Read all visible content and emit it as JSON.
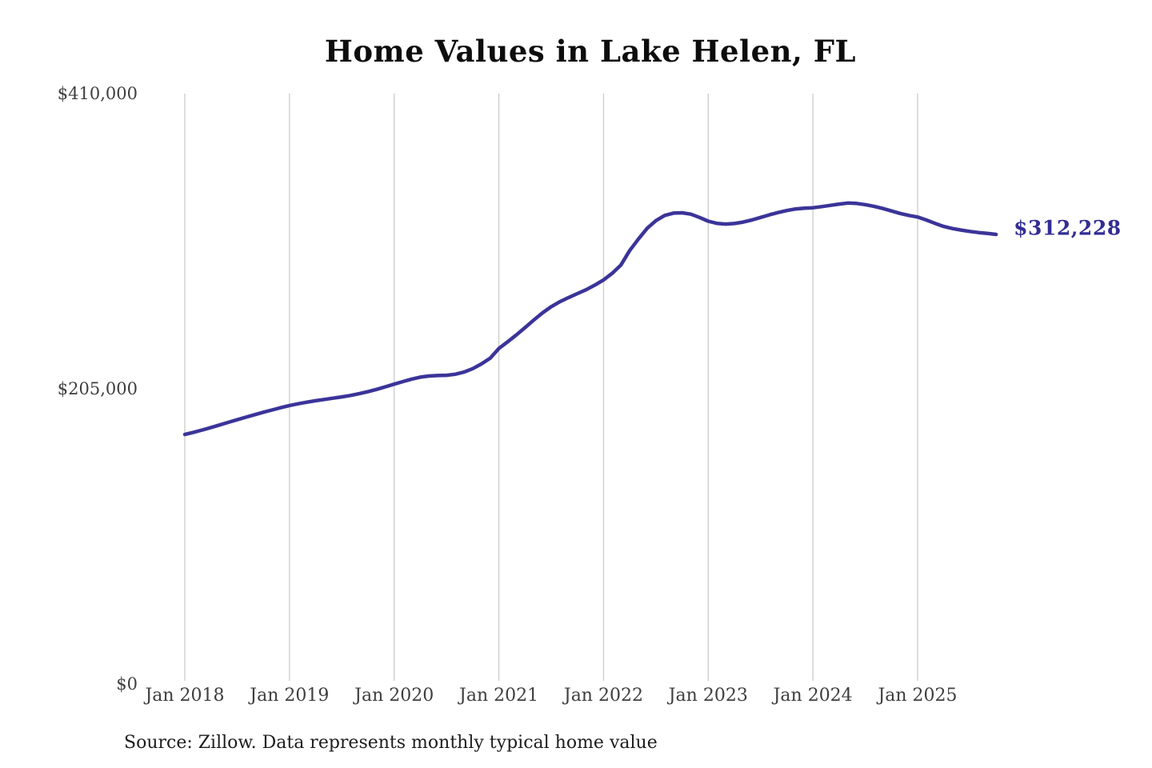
{
  "title": "Home Values in Lake Helen, FL",
  "source_note": "Source: Zillow. Data represents monthly typical home value",
  "end_label": "$312,228",
  "colors": {
    "line": "#3b3499",
    "value_label": "#332d94",
    "grid": "#cbcbcb",
    "axis_text": "#3e3e3e",
    "title_text": "#0d0d0d",
    "background": "#ffffff"
  },
  "chart_data": {
    "type": "line",
    "title": "Home Values in Lake Helen, FL",
    "xlabel": "",
    "ylabel": "",
    "ylim": [
      0,
      410000
    ],
    "y_ticks": [
      "$410,000",
      "$205,000",
      "$0"
    ],
    "y_tick_values": [
      410000,
      205000,
      0
    ],
    "x_ticks": [
      "Jan 2018",
      "Jan 2019",
      "Jan 2020",
      "Jan 2021",
      "Jan 2022",
      "Jan 2023",
      "Jan 2024",
      "Jan 2025"
    ],
    "x_start": "2018-01",
    "x_end": "2025-10",
    "frequency": "monthly",
    "grid": "vertical-only",
    "legend": "none",
    "end_value": 312228,
    "series": [
      {
        "name": "Typical home value",
        "values": [
          173300,
          174800,
          176400,
          178100,
          179900,
          181700,
          183500,
          185300,
          187000,
          188700,
          190300,
          191900,
          193400,
          194600,
          195700,
          196700,
          197600,
          198500,
          199400,
          200400,
          201600,
          203000,
          204600,
          206400,
          208200,
          210000,
          211700,
          213100,
          213900,
          214200,
          214400,
          215100,
          216600,
          219000,
          222300,
          226300,
          233000,
          237600,
          242400,
          247500,
          252700,
          257700,
          262000,
          265500,
          268400,
          271100,
          273800,
          277000,
          280600,
          285200,
          291000,
          301000,
          309000,
          316500,
          321800,
          325400,
          327000,
          327200,
          326300,
          324000,
          321400,
          319900,
          319400,
          319800,
          320800,
          322200,
          324000,
          325800,
          327400,
          328800,
          329900,
          330400,
          330700,
          331500,
          332400,
          333300,
          334000,
          333700,
          332900,
          331700,
          330200,
          328500,
          326800,
          325400,
          324300,
          322200,
          319900,
          317700,
          316300,
          315200,
          314300,
          313500,
          312900,
          312228
        ]
      }
    ]
  }
}
